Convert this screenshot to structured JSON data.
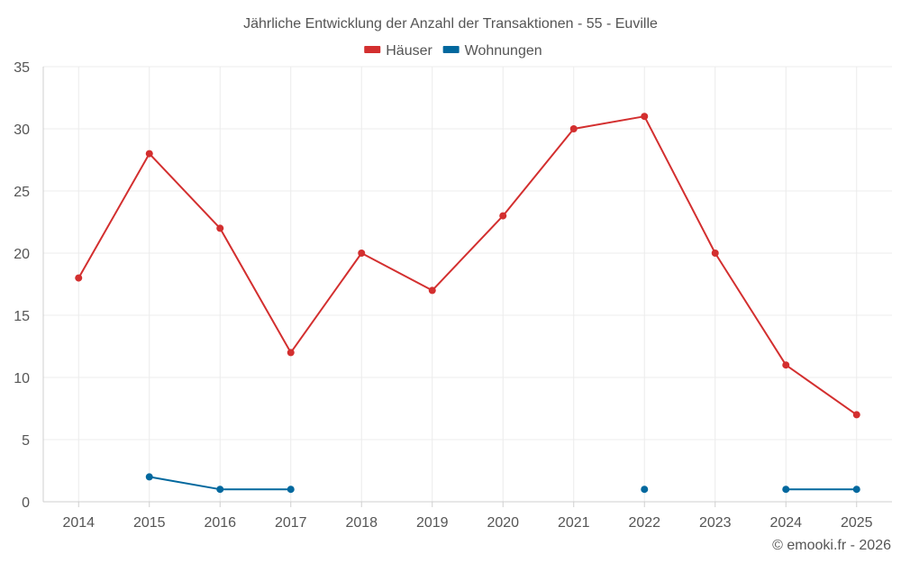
{
  "chart_data": {
    "type": "line",
    "title": "Jährliche Entwicklung der Anzahl der Transaktionen - 55 - Euville",
    "categories": [
      "2014",
      "2015",
      "2016",
      "2017",
      "2018",
      "2019",
      "2020",
      "2021",
      "2022",
      "2023",
      "2024",
      "2025"
    ],
    "series": [
      {
        "name": "Häuser",
        "color": "#d32f2f",
        "values": [
          18,
          28,
          22,
          12,
          20,
          17,
          23,
          30,
          31,
          20,
          11,
          7
        ]
      },
      {
        "name": "Wohnungen",
        "color": "#01689e",
        "values": [
          null,
          2,
          1,
          1,
          null,
          null,
          null,
          null,
          1,
          null,
          1,
          1
        ]
      }
    ],
    "ylim": [
      0,
      35
    ],
    "yticks": [
      0,
      5,
      10,
      15,
      20,
      25,
      30,
      35
    ],
    "xlabel": "",
    "ylabel": "",
    "grid": true,
    "legend_position": "top-center"
  },
  "credit": "© emooki.fr - 2026"
}
